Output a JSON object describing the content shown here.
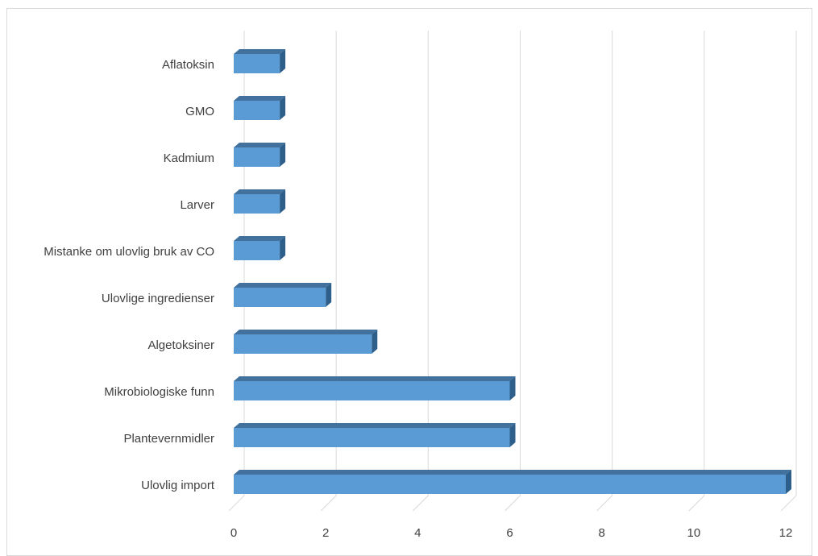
{
  "chart_data": {
    "type": "bar",
    "orientation": "horizontal",
    "style": "3d",
    "title": "",
    "xlabel": "",
    "ylabel": "",
    "categories": [
      "Aflatoksin",
      "GMO",
      "Kadmium",
      "Larver",
      "Mistanke om ulovlig bruk av CO",
      "Ulovlige ingredienser",
      "Algetoksiner",
      "Mikrobiologiske funn",
      "Plantevernmidler",
      "Ulovlig import"
    ],
    "values": [
      1,
      1,
      1,
      1,
      1,
      2,
      3,
      6,
      6,
      12
    ],
    "xlim": [
      0,
      12
    ],
    "ticks": [
      "0",
      "2",
      "4",
      "6",
      "8",
      "10",
      "12"
    ],
    "grid": true,
    "legend": "none",
    "colors": {
      "bar_front": "#5b9bd5",
      "bar_top": "#41719c",
      "bar_side": "#2e5f8a",
      "gridline": "#d9d9d9",
      "label": "#404040"
    }
  }
}
